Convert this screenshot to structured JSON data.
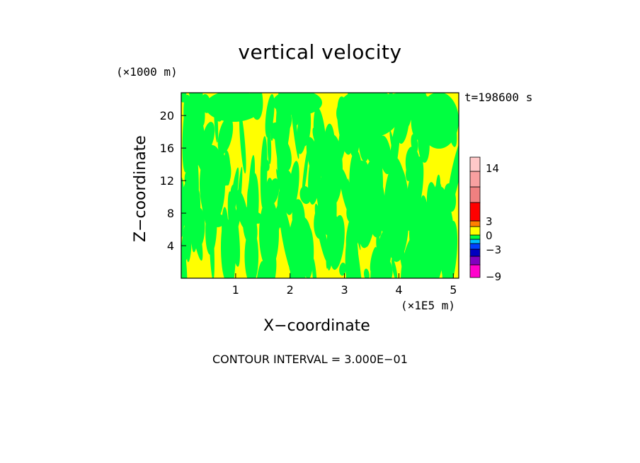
{
  "chart_data": {
    "type": "heatmap",
    "title": "vertical velocity",
    "xlabel": "X−coordinate",
    "ylabel": "Z−coordinate",
    "x_unit": "(×1E5 m)",
    "y_unit": "(×1000 m)",
    "time_label": "t=198600 s",
    "footer": "CONTOUR INTERVAL = 3.000E−01",
    "xlim": [
      0,
      5.1
    ],
    "ylim": [
      0,
      22.8
    ],
    "x_ticks": [
      "1",
      "2",
      "3",
      "4",
      "5"
    ],
    "y_ticks": [
      "4",
      "8",
      "12",
      "16",
      "20"
    ],
    "field_colors": {
      "positive": "#ffff00",
      "negative": "#00ff40"
    },
    "colorbar": {
      "tick_labels": [
        "14",
        "3",
        "0",
        "−3",
        "−9"
      ],
      "colors_bottom_to_top": [
        "#ff00cc",
        "#8000c0",
        "#0000c0",
        "#0040ff",
        "#00c0ff",
        "#00ff40",
        "#ffff00",
        "#ff8000",
        "#ff0000",
        "#f08080",
        "#f8a0a0",
        "#ffc8c8"
      ]
    }
  }
}
